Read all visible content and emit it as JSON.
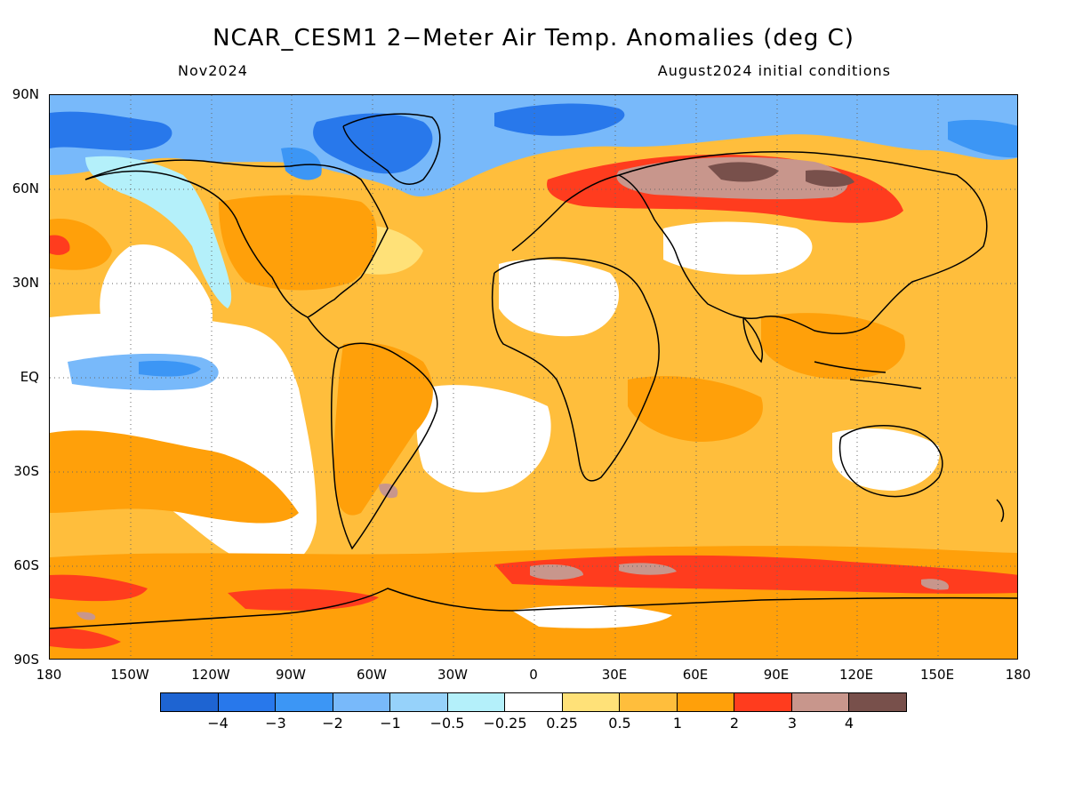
{
  "title": "NCAR_CESM1 2−Meter Air Temp. Anomalies (deg C)",
  "subtitle_left": "Nov2024",
  "subtitle_right": "August2024 initial conditions",
  "lat_labels": [
    "90N",
    "60N",
    "30N",
    "EQ",
    "30S",
    "60S",
    "90S"
  ],
  "lon_labels": [
    "180",
    "150W",
    "120W",
    "90W",
    "60W",
    "30W",
    "0",
    "30E",
    "60E",
    "90E",
    "120E",
    "150E",
    "180"
  ],
  "colorbar": {
    "colors": [
      "#1e64d2",
      "#2878eb",
      "#3c96f5",
      "#78b9fa",
      "#96d2fa",
      "#b4f0fa",
      "#ffffff",
      "#ffe178",
      "#ffbe3c",
      "#ffa00a",
      "#ff3c1e",
      "#c8968c",
      "#78504b"
    ],
    "labels": [
      "−4",
      "−3",
      "−2",
      "−1",
      "−0.5",
      "−0.25",
      "0.25",
      "0.5",
      "1",
      "2",
      "3",
      "4"
    ]
  },
  "map": {
    "background_color": "#ffbe3c",
    "coastline_color": "#000000"
  }
}
